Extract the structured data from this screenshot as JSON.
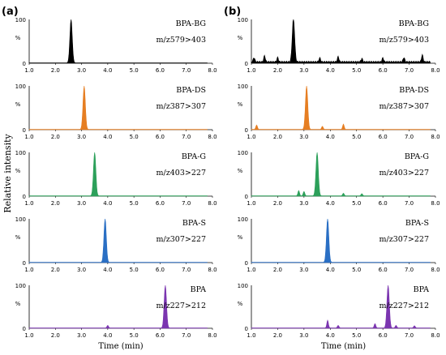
{
  "figure": {
    "ylabel": "Relative intensity",
    "xlabel": "Time (min)"
  },
  "chart_data": [
    {
      "panel": "(a)",
      "type": "line",
      "x_ticks": [
        "1.0",
        "2.0",
        "3.0",
        "4.0",
        "5.0",
        "6.0",
        "7.0",
        "8.0"
      ],
      "xlim": [
        1.0,
        8.0
      ],
      "ylim": [
        0,
        100
      ],
      "y_ticks": [
        "0",
        "100"
      ],
      "y_unit": "%",
      "plots": [
        {
          "analyte": "BPA-BG",
          "transition": "m/z579>403",
          "color": "#000000",
          "peak": 2.6,
          "noise": []
        },
        {
          "analyte": "BPA-DS",
          "transition": "m/z387>307",
          "color": "#e67e22",
          "peak": 3.1,
          "noise": []
        },
        {
          "analyte": "BPA-G",
          "transition": "m/z403>227",
          "color": "#2ca05a",
          "peak": 3.5,
          "noise": []
        },
        {
          "analyte": "BPA-S",
          "transition": "m/z307>227",
          "color": "#2a6fc4",
          "peak": 3.9,
          "noise": []
        },
        {
          "analyte": "BPA",
          "transition": "m/z227>212",
          "color": "#7b35b0",
          "peak": 6.2,
          "noise": [
            [
              4.0,
              6
            ]
          ]
        }
      ]
    },
    {
      "panel": "(b)",
      "type": "line",
      "x_ticks": [
        "1.0",
        "2.0",
        "3.0",
        "4.0",
        "5.0",
        "6.0",
        "7.0",
        "8.0"
      ],
      "xlim": [
        1.0,
        8.0
      ],
      "ylim": [
        0,
        100
      ],
      "y_ticks": [
        "0",
        "100"
      ],
      "y_unit": "%",
      "plots": [
        {
          "analyte": "BPA-BG",
          "transition": "m/z579>403",
          "color": "#000000",
          "peak": 2.6,
          "noise": [
            [
              1.1,
              10
            ],
            [
              1.5,
              14
            ],
            [
              2.0,
              10
            ],
            [
              3.6,
              9
            ],
            [
              4.3,
              12
            ],
            [
              5.2,
              8
            ],
            [
              6.0,
              9
            ],
            [
              6.8,
              10
            ],
            [
              7.5,
              16
            ]
          ]
        },
        {
          "analyte": "BPA-DS",
          "transition": "m/z387>307",
          "color": "#e67e22",
          "peak": 3.1,
          "noise": [
            [
              1.2,
              10
            ],
            [
              3.7,
              7
            ],
            [
              4.5,
              12
            ]
          ]
        },
        {
          "analyte": "BPA-G",
          "transition": "m/z403>227",
          "color": "#2ca05a",
          "peak": 3.5,
          "noise": [
            [
              2.8,
              12
            ],
            [
              3.0,
              10
            ],
            [
              4.5,
              6
            ],
            [
              5.2,
              5
            ]
          ]
        },
        {
          "analyte": "BPA-S",
          "transition": "m/z307>227",
          "color": "#2a6fc4",
          "peak": 3.9,
          "noise": []
        },
        {
          "analyte": "BPA",
          "transition": "m/z227>212",
          "color": "#7b35b0",
          "peak": 6.2,
          "noise": [
            [
              3.9,
              18
            ],
            [
              4.3,
              6
            ],
            [
              5.7,
              10
            ],
            [
              6.5,
              6
            ],
            [
              7.2,
              5
            ]
          ]
        }
      ]
    }
  ]
}
